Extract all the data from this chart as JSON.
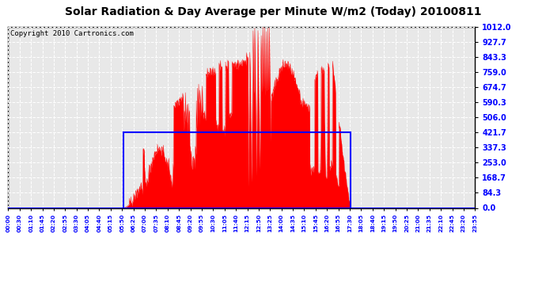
{
  "title": "Solar Radiation & Day Average per Minute W/m2 (Today) 20100811",
  "copyright": "Copyright 2010 Cartronics.com",
  "y_ticks": [
    0.0,
    84.3,
    168.7,
    253.0,
    337.3,
    421.7,
    506.0,
    590.3,
    674.7,
    759.0,
    843.3,
    927.7,
    1012.0
  ],
  "y_max": 1012.0,
  "y_min": 0.0,
  "fill_color": "#FF0000",
  "box_color": "#0000FF",
  "background_color": "#FFFFFF",
  "grid_color": "#C0C0C0",
  "title_fontsize": 10,
  "copyright_fontsize": 6.5,
  "tick_fontsize": 7,
  "n_minutes": 1440,
  "sunrise_minute": 355,
  "sunset_minute": 1055,
  "day_avg": 421.7,
  "x_tick_labels": [
    "00:00",
    "00:30",
    "01:10",
    "01:45",
    "02:20",
    "02:55",
    "03:30",
    "04:05",
    "04:40",
    "05:15",
    "05:50",
    "06:25",
    "07:00",
    "07:35",
    "08:10",
    "08:45",
    "09:20",
    "09:55",
    "10:30",
    "11:05",
    "11:40",
    "12:15",
    "12:50",
    "13:25",
    "14:00",
    "14:35",
    "15:10",
    "15:45",
    "16:20",
    "16:55",
    "17:30",
    "18:05",
    "18:40",
    "19:15",
    "19:50",
    "20:25",
    "21:00",
    "21:35",
    "22:10",
    "22:45",
    "23:20",
    "23:55"
  ]
}
